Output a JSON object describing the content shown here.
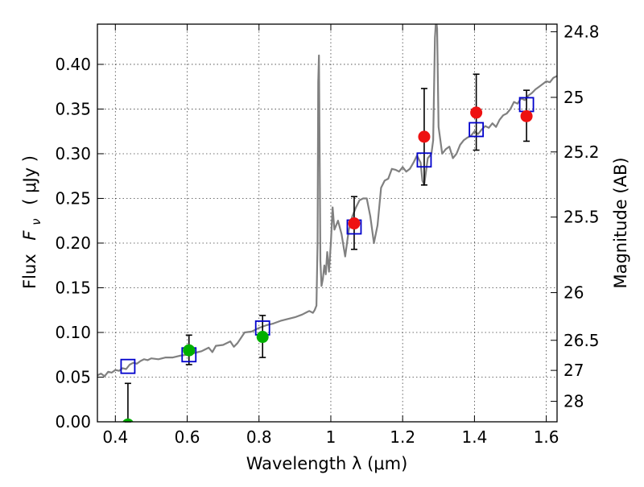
{
  "chart_data": {
    "type": "scatter",
    "xlabel": "Wavelength  λ (μm)",
    "ylabel_parts": [
      "Flux",
      "F",
      "ν",
      "( μJy )"
    ],
    "y2label": "Magnitude (AB)",
    "xlim": [
      0.35,
      1.63
    ],
    "ylim": [
      0.0,
      0.445
    ],
    "grid": true,
    "x_ticks": [
      {
        "value": 0.4,
        "label": "0.4"
      },
      {
        "value": 0.6,
        "label": "0.6"
      },
      {
        "value": 0.8,
        "label": "0.8"
      },
      {
        "value": 1.0,
        "label": "1"
      },
      {
        "value": 1.2,
        "label": "1.2"
      },
      {
        "value": 1.4,
        "label": "1.4"
      },
      {
        "value": 1.6,
        "label": "1.6"
      }
    ],
    "y_ticks": [
      {
        "value": 0.0,
        "label": "0.00"
      },
      {
        "value": 0.05,
        "label": "0.05"
      },
      {
        "value": 0.1,
        "label": "0.10"
      },
      {
        "value": 0.15,
        "label": "0.15"
      },
      {
        "value": 0.2,
        "label": "0.20"
      },
      {
        "value": 0.25,
        "label": "0.25"
      },
      {
        "value": 0.3,
        "label": "0.30"
      },
      {
        "value": 0.35,
        "label": "0.35"
      },
      {
        "value": 0.4,
        "label": "0.40"
      }
    ],
    "y2_ticks": [
      {
        "value": 24.8,
        "label": "24.8"
      },
      {
        "value": 25.0,
        "label": "25"
      },
      {
        "value": 25.2,
        "label": "25.2"
      },
      {
        "value": 25.5,
        "label": "25.5"
      },
      {
        "value": 26.0,
        "label": "26"
      },
      {
        "value": 26.5,
        "label": "26.5"
      },
      {
        "value": 27.0,
        "label": "27"
      },
      {
        "value": 28.0,
        "label": "28"
      }
    ],
    "spectrum": {
      "color": "#808080",
      "points": [
        [
          0.35,
          0.052
        ],
        [
          0.36,
          0.054
        ],
        [
          0.37,
          0.051
        ],
        [
          0.38,
          0.056
        ],
        [
          0.39,
          0.055
        ],
        [
          0.4,
          0.058
        ],
        [
          0.41,
          0.057
        ],
        [
          0.42,
          0.06
        ],
        [
          0.43,
          0.059
        ],
        [
          0.44,
          0.064
        ],
        [
          0.45,
          0.066
        ],
        [
          0.46,
          0.065
        ],
        [
          0.47,
          0.068
        ],
        [
          0.48,
          0.07
        ],
        [
          0.49,
          0.069
        ],
        [
          0.5,
          0.071
        ],
        [
          0.52,
          0.07
        ],
        [
          0.54,
          0.072
        ],
        [
          0.56,
          0.072
        ],
        [
          0.58,
          0.074
        ],
        [
          0.6,
          0.075
        ],
        [
          0.62,
          0.077
        ],
        [
          0.64,
          0.079
        ],
        [
          0.66,
          0.083
        ],
        [
          0.67,
          0.078
        ],
        [
          0.68,
          0.085
        ],
        [
          0.7,
          0.086
        ],
        [
          0.72,
          0.09
        ],
        [
          0.73,
          0.084
        ],
        [
          0.74,
          0.088
        ],
        [
          0.76,
          0.1
        ],
        [
          0.78,
          0.101
        ],
        [
          0.8,
          0.105
        ],
        [
          0.82,
          0.108
        ],
        [
          0.84,
          0.11
        ],
        [
          0.86,
          0.113
        ],
        [
          0.88,
          0.115
        ],
        [
          0.9,
          0.117
        ],
        [
          0.92,
          0.12
        ],
        [
          0.94,
          0.124
        ],
        [
          0.95,
          0.122
        ],
        [
          0.955,
          0.125
        ],
        [
          0.96,
          0.13
        ],
        [
          0.963,
          0.2
        ],
        [
          0.965,
          0.38
        ],
        [
          0.967,
          0.41
        ],
        [
          0.969,
          0.3
        ],
        [
          0.971,
          0.18
        ],
        [
          0.974,
          0.152
        ],
        [
          0.978,
          0.16
        ],
        [
          0.982,
          0.175
        ],
        [
          0.986,
          0.165
        ],
        [
          0.99,
          0.19
        ],
        [
          0.995,
          0.168
        ],
        [
          1.0,
          0.2
        ],
        [
          1.005,
          0.24
        ],
        [
          1.01,
          0.215
        ],
        [
          1.02,
          0.225
        ],
        [
          1.03,
          0.21
        ],
        [
          1.04,
          0.185
        ],
        [
          1.05,
          0.215
        ],
        [
          1.06,
          0.23
        ],
        [
          1.07,
          0.24
        ],
        [
          1.08,
          0.248
        ],
        [
          1.09,
          0.25
        ],
        [
          1.1,
          0.25
        ],
        [
          1.11,
          0.23
        ],
        [
          1.12,
          0.2
        ],
        [
          1.13,
          0.22
        ],
        [
          1.14,
          0.262
        ],
        [
          1.15,
          0.27
        ],
        [
          1.16,
          0.272
        ],
        [
          1.17,
          0.283
        ],
        [
          1.18,
          0.282
        ],
        [
          1.19,
          0.28
        ],
        [
          1.2,
          0.285
        ],
        [
          1.21,
          0.28
        ],
        [
          1.22,
          0.283
        ],
        [
          1.23,
          0.29
        ],
        [
          1.24,
          0.298
        ],
        [
          1.25,
          0.29
        ],
        [
          1.255,
          0.27
        ],
        [
          1.26,
          0.265
        ],
        [
          1.265,
          0.28
        ],
        [
          1.27,
          0.295
        ],
        [
          1.28,
          0.3
        ],
        [
          1.285,
          0.315
        ],
        [
          1.29,
          0.43
        ],
        [
          1.293,
          0.45
        ],
        [
          1.296,
          0.44
        ],
        [
          1.3,
          0.33
        ],
        [
          1.31,
          0.3
        ],
        [
          1.32,
          0.305
        ],
        [
          1.33,
          0.308
        ],
        [
          1.34,
          0.295
        ],
        [
          1.35,
          0.3
        ],
        [
          1.36,
          0.31
        ],
        [
          1.37,
          0.315
        ],
        [
          1.38,
          0.318
        ],
        [
          1.39,
          0.32
        ],
        [
          1.4,
          0.325
        ],
        [
          1.41,
          0.322
        ],
        [
          1.42,
          0.327
        ],
        [
          1.43,
          0.331
        ],
        [
          1.44,
          0.329
        ],
        [
          1.45,
          0.334
        ],
        [
          1.46,
          0.33
        ],
        [
          1.47,
          0.338
        ],
        [
          1.48,
          0.343
        ],
        [
          1.49,
          0.345
        ],
        [
          1.5,
          0.35
        ],
        [
          1.51,
          0.358
        ],
        [
          1.52,
          0.356
        ],
        [
          1.53,
          0.362
        ],
        [
          1.54,
          0.36
        ],
        [
          1.55,
          0.365
        ],
        [
          1.56,
          0.368
        ],
        [
          1.57,
          0.372
        ],
        [
          1.58,
          0.375
        ],
        [
          1.59,
          0.378
        ],
        [
          1.6,
          0.381
        ],
        [
          1.61,
          0.38
        ],
        [
          1.62,
          0.385
        ],
        [
          1.63,
          0.387
        ]
      ]
    },
    "model_boxes": {
      "color": "#0000cc",
      "points": [
        [
          0.435,
          0.062
        ],
        [
          0.605,
          0.075
        ],
        [
          0.81,
          0.105
        ],
        [
          1.065,
          0.218
        ],
        [
          1.26,
          0.293
        ],
        [
          1.405,
          0.327
        ],
        [
          1.545,
          0.355
        ]
      ]
    },
    "photometry": [
      {
        "x": 0.435,
        "y": -0.003,
        "yerr_low": 0.0,
        "yerr_high": 0.043,
        "color": "#00b000"
      },
      {
        "x": 0.605,
        "y": 0.08,
        "yerr_low": 0.064,
        "yerr_high": 0.097,
        "color": "#00b000"
      },
      {
        "x": 0.81,
        "y": 0.095,
        "yerr_low": 0.072,
        "yerr_high": 0.119,
        "color": "#00b000"
      },
      {
        "x": 1.065,
        "y": 0.222,
        "yerr_low": 0.193,
        "yerr_high": 0.252,
        "color": "#ee1111"
      },
      {
        "x": 1.26,
        "y": 0.319,
        "yerr_low": 0.265,
        "yerr_high": 0.373,
        "color": "#ee1111"
      },
      {
        "x": 1.405,
        "y": 0.346,
        "yerr_low": 0.304,
        "yerr_high": 0.389,
        "color": "#ee1111"
      },
      {
        "x": 1.545,
        "y": 0.342,
        "yerr_low": 0.314,
        "yerr_high": 0.371,
        "color": "#ee1111"
      }
    ]
  }
}
